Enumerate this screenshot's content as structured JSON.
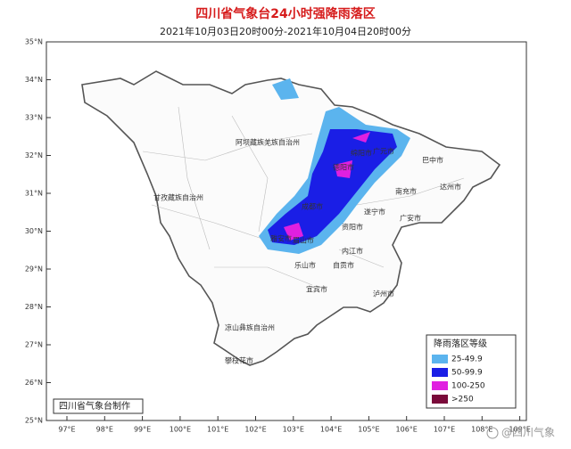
{
  "header": {
    "title": "四川省气象台24小时强降雨落区",
    "subtitle": "2021年10月03日20时00分-2021年10月04日20时00分"
  },
  "axes": {
    "lat_ticks": [
      {
        "value": 35,
        "label": "35°N"
      },
      {
        "value": 34,
        "label": "34°N"
      },
      {
        "value": 33,
        "label": "33°N"
      },
      {
        "value": 32,
        "label": "32°N"
      },
      {
        "value": 31,
        "label": "31°N"
      },
      {
        "value": 30,
        "label": "30°N"
      },
      {
        "value": 29,
        "label": "29°N"
      },
      {
        "value": 28,
        "label": "28°N"
      },
      {
        "value": 27,
        "label": "27°N"
      },
      {
        "value": 26,
        "label": "26°N"
      },
      {
        "value": 25,
        "label": "25°N"
      }
    ],
    "lon_ticks": [
      {
        "value": 97,
        "label": "97°E"
      },
      {
        "value": 98,
        "label": "98°E"
      },
      {
        "value": 99,
        "label": "99°E"
      },
      {
        "value": 100,
        "label": "100°E"
      },
      {
        "value": 101,
        "label": "101°E"
      },
      {
        "value": 102,
        "label": "102°E"
      },
      {
        "value": 103,
        "label": "103°E"
      },
      {
        "value": 104,
        "label": "104°E"
      },
      {
        "value": 105,
        "label": "105°E"
      },
      {
        "value": 106,
        "label": "106°E"
      },
      {
        "value": 107,
        "label": "107°E"
      },
      {
        "value": 108,
        "label": "108°E"
      },
      {
        "value": 109,
        "label": "109°E"
      }
    ]
  },
  "places": [
    "阿坝藏族羌族自治州",
    "甘孜藏族自治州",
    "凉山彝族自治州",
    "成都市",
    "雅安市",
    "乐山市",
    "眉山市",
    "德阳市",
    "绵阳市",
    "广元市",
    "巴中市",
    "达州市",
    "南充市",
    "遂宁市",
    "广安市",
    "资阳市",
    "内江市",
    "自贡市",
    "宜宾市",
    "泸州市",
    "攀枝花市"
  ],
  "legend": {
    "title": "降雨落区等级",
    "items": [
      {
        "label": "25-49.9",
        "color": "#5bb4ee"
      },
      {
        "label": "50-99.9",
        "color": "#1a1ee6"
      },
      {
        "label": "100-250",
        "color": "#e020e0"
      },
      {
        "label": ">250",
        "color": "#7a0a3a"
      }
    ]
  },
  "credit": "四川省气象台制作",
  "watermark": "@四川气象"
}
